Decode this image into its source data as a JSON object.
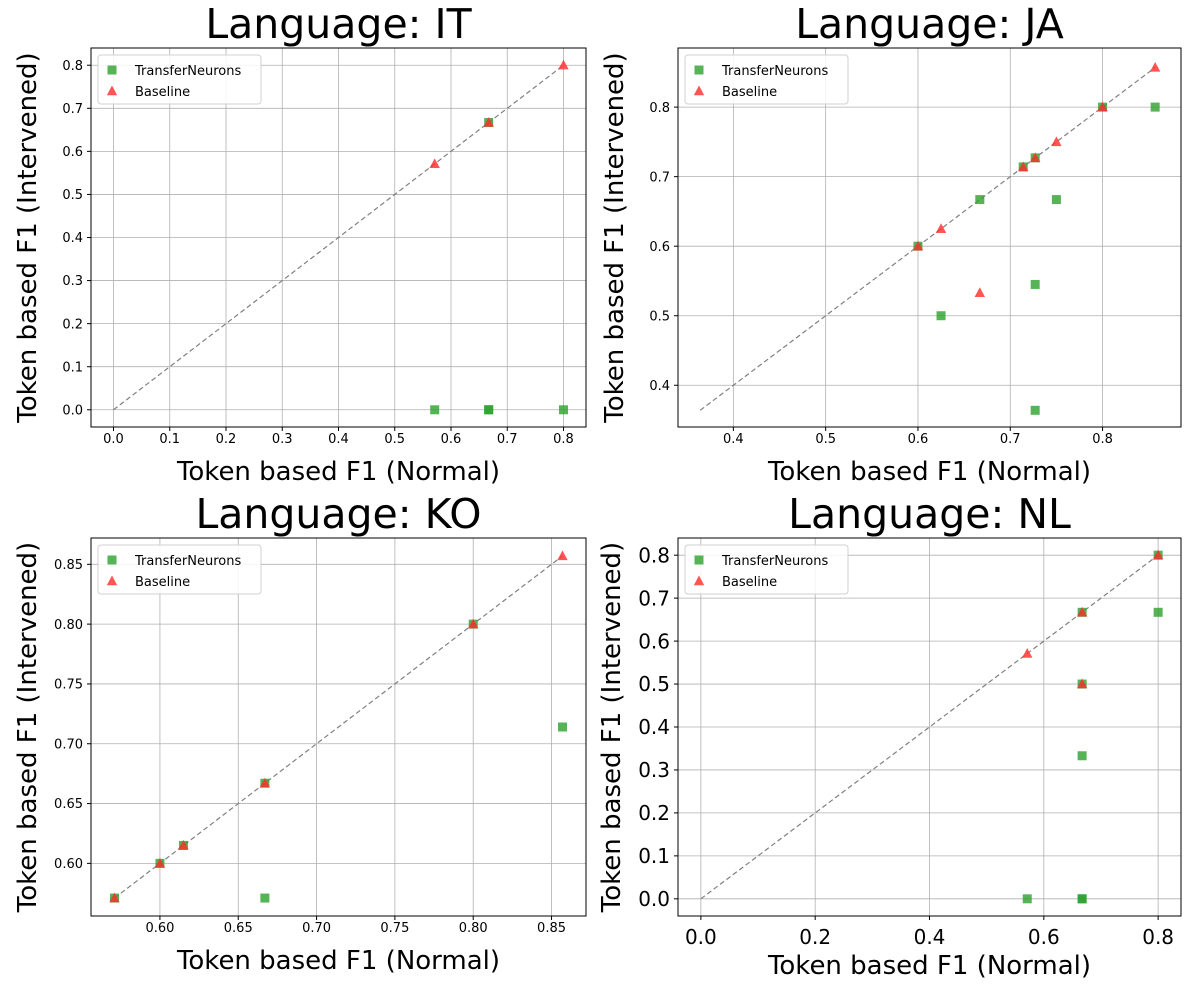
{
  "chart_data": [
    {
      "type": "scatter",
      "title": "Language: IT",
      "xlabel": "Token based F1 (Normal)",
      "ylabel": "Token based F1 (Intervened)",
      "xlim": [
        -0.04,
        0.84
      ],
      "ylim": [
        -0.04,
        0.84
      ],
      "xticks": [
        0.0,
        0.1,
        0.2,
        0.3,
        0.4,
        0.5,
        0.6,
        0.7,
        0.8
      ],
      "xtick_labels": [
        "0.0",
        "0.1",
        "0.2",
        "0.3",
        "0.4",
        "0.5",
        "0.6",
        "0.7",
        "0.8"
      ],
      "yticks": [
        0.0,
        0.1,
        0.2,
        0.3,
        0.4,
        0.5,
        0.6,
        0.7,
        0.8
      ],
      "ytick_labels": [
        "0.0",
        "0.1",
        "0.2",
        "0.3",
        "0.4",
        "0.5",
        "0.6",
        "0.7",
        "0.8"
      ],
      "diagonal": [
        0.0,
        0.8
      ],
      "grid": true,
      "legend_position": "top-left",
      "series": [
        {
          "name": "TransferNeurons",
          "marker": "square",
          "color": "#2ca02c",
          "points": [
            [
              0.571,
              0.0
            ],
            [
              0.667,
              0.0
            ],
            [
              0.667,
              0.0
            ],
            [
              0.8,
              0.0
            ],
            [
              0.667,
              0.667
            ]
          ]
        },
        {
          "name": "Baseline",
          "marker": "triangle",
          "color": "#ff2b2b",
          "points": [
            [
              0.571,
              0.571
            ],
            [
              0.667,
              0.667
            ],
            [
              0.8,
              0.8
            ]
          ]
        }
      ]
    },
    {
      "type": "scatter",
      "title": "Language: JA",
      "xlabel": "Token based F1 (Normal)",
      "ylabel": "Token based F1 (Intervened)",
      "xlim": [
        0.34,
        0.885
      ],
      "ylim": [
        0.34,
        0.885
      ],
      "xticks": [
        0.4,
        0.5,
        0.6,
        0.7,
        0.8
      ],
      "xtick_labels": [
        "0.4",
        "0.5",
        "0.6",
        "0.7",
        "0.8"
      ],
      "yticks": [
        0.4,
        0.5,
        0.6,
        0.7,
        0.8
      ],
      "ytick_labels": [
        "0.4",
        "0.5",
        "0.6",
        "0.7",
        "0.8"
      ],
      "diagonal": [
        0.364,
        0.857
      ],
      "grid": true,
      "legend_position": "top-left",
      "series": [
        {
          "name": "TransferNeurons",
          "marker": "square",
          "color": "#2ca02c",
          "points": [
            [
              0.6,
              0.6
            ],
            [
              0.625,
              0.5
            ],
            [
              0.667,
              0.667
            ],
            [
              0.714,
              0.714
            ],
            [
              0.727,
              0.727
            ],
            [
              0.727,
              0.545
            ],
            [
              0.727,
              0.364
            ],
            [
              0.75,
              0.667
            ],
            [
              0.8,
              0.8
            ],
            [
              0.857,
              0.8
            ]
          ]
        },
        {
          "name": "Baseline",
          "marker": "triangle",
          "color": "#ff2b2b",
          "points": [
            [
              0.6,
              0.6
            ],
            [
              0.625,
              0.625
            ],
            [
              0.667,
              0.533
            ],
            [
              0.714,
              0.714
            ],
            [
              0.727,
              0.727
            ],
            [
              0.75,
              0.75
            ],
            [
              0.8,
              0.8
            ],
            [
              0.857,
              0.857
            ]
          ]
        }
      ]
    },
    {
      "type": "scatter",
      "title": "Language: KO",
      "xlabel": "Token based F1 (Normal)",
      "ylabel": "Token based F1 (Intervened)",
      "xlim": [
        0.556,
        0.872
      ],
      "ylim": [
        0.556,
        0.872
      ],
      "xticks": [
        0.6,
        0.65,
        0.7,
        0.75,
        0.8,
        0.85
      ],
      "xtick_labels": [
        "0.60",
        "0.65",
        "0.70",
        "0.75",
        "0.80",
        "0.85"
      ],
      "yticks": [
        0.6,
        0.65,
        0.7,
        0.75,
        0.8,
        0.85
      ],
      "ytick_labels": [
        "0.60",
        "0.65",
        "0.70",
        "0.75",
        "0.80",
        "0.85"
      ],
      "diagonal": [
        0.571,
        0.857
      ],
      "grid": true,
      "legend_position": "top-left",
      "series": [
        {
          "name": "TransferNeurons",
          "marker": "square",
          "color": "#2ca02c",
          "points": [
            [
              0.571,
              0.571
            ],
            [
              0.6,
              0.6
            ],
            [
              0.615,
              0.615
            ],
            [
              0.667,
              0.667
            ],
            [
              0.667,
              0.571
            ],
            [
              0.8,
              0.8
            ],
            [
              0.857,
              0.714
            ]
          ]
        },
        {
          "name": "Baseline",
          "marker": "triangle",
          "color": "#ff2b2b",
          "points": [
            [
              0.571,
              0.571
            ],
            [
              0.6,
              0.6
            ],
            [
              0.615,
              0.615
            ],
            [
              0.667,
              0.667
            ],
            [
              0.8,
              0.8
            ],
            [
              0.857,
              0.857
            ]
          ]
        }
      ]
    },
    {
      "type": "scatter",
      "title": "Language: NL",
      "xlabel": "Token based F1 (Normal)",
      "ylabel": "Token based F1 (Intervened)",
      "xlim": [
        -0.04,
        0.84
      ],
      "ylim": [
        -0.04,
        0.84
      ],
      "xticks": [
        0.0,
        0.2,
        0.4,
        0.6,
        0.8
      ],
      "xtick_labels": [
        "0.0",
        "0.2",
        "0.4",
        "0.6",
        "0.8"
      ],
      "yticks": [
        0.0,
        0.1,
        0.2,
        0.3,
        0.4,
        0.5,
        0.6,
        0.7,
        0.8
      ],
      "ytick_labels": [
        "0.0",
        "0.1",
        "0.2",
        "0.3",
        "0.4",
        "0.5",
        "0.6",
        "0.7",
        "0.8"
      ],
      "diagonal": [
        0.0,
        0.8
      ],
      "grid": true,
      "legend_position": "top-left",
      "series": [
        {
          "name": "TransferNeurons",
          "marker": "square",
          "color": "#2ca02c",
          "points": [
            [
              0.571,
              0.0
            ],
            [
              0.667,
              0.0
            ],
            [
              0.667,
              0.0
            ],
            [
              0.667,
              0.333
            ],
            [
              0.667,
              0.5
            ],
            [
              0.8,
              0.8
            ],
            [
              0.8,
              0.667
            ],
            [
              0.667,
              0.667
            ]
          ]
        },
        {
          "name": "Baseline",
          "marker": "triangle",
          "color": "#ff2b2b",
          "points": [
            [
              0.571,
              0.571
            ],
            [
              0.667,
              0.667
            ],
            [
              0.667,
              0.5
            ],
            [
              0.8,
              0.8
            ]
          ]
        }
      ]
    }
  ]
}
